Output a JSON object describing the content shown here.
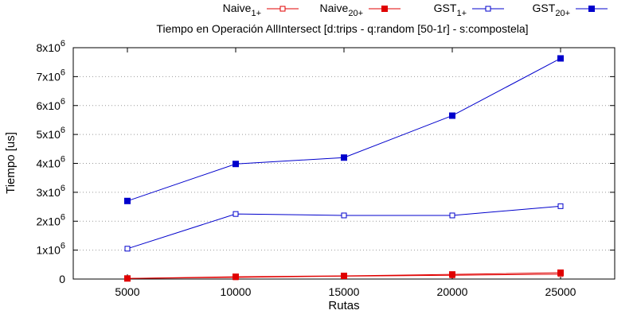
{
  "chart_data": {
    "type": "line",
    "title": "Tiempo en Operación AllIntersect [d:trips - q:random [50-1r] - s:compostela]",
    "xlabel": "Rutas",
    "ylabel": "Tiempo [us]",
    "x": [
      5000,
      10000,
      15000,
      20000,
      25000
    ],
    "xlim": [
      2500,
      27500
    ],
    "ylim": [
      0,
      8000000
    ],
    "x_ticks": [
      "5000",
      "10000",
      "15000",
      "20000",
      "25000"
    ],
    "y_ticks": [
      {
        "base": "0",
        "exp": ""
      },
      {
        "base": "1x10",
        "exp": "6"
      },
      {
        "base": "2x10",
        "exp": "6"
      },
      {
        "base": "3x10",
        "exp": "6"
      },
      {
        "base": "4x10",
        "exp": "6"
      },
      {
        "base": "5x10",
        "exp": "6"
      },
      {
        "base": "6x10",
        "exp": "6"
      },
      {
        "base": "7x10",
        "exp": "6"
      },
      {
        "base": "8x10",
        "exp": "6"
      }
    ],
    "grid": "horizontal-dotted",
    "legend_position": "top",
    "series": [
      {
        "name": "Naive",
        "sub": "1+",
        "color": "#e00000",
        "marker": "open-square",
        "values": [
          20000,
          60000,
          100000,
          130000,
          170000
        ]
      },
      {
        "name": "Naive",
        "sub": "20+",
        "color": "#e00000",
        "marker": "filled-square",
        "values": [
          20000,
          80000,
          110000,
          160000,
          220000
        ]
      },
      {
        "name": "GST",
        "sub": "1+",
        "color": "#0000cc",
        "marker": "open-square",
        "values": [
          1050000,
          2250000,
          2200000,
          2200000,
          2520000
        ]
      },
      {
        "name": "GST",
        "sub": "20+",
        "color": "#0000cc",
        "marker": "filled-square",
        "values": [
          2700000,
          3980000,
          4200000,
          5650000,
          7630000
        ]
      }
    ]
  }
}
